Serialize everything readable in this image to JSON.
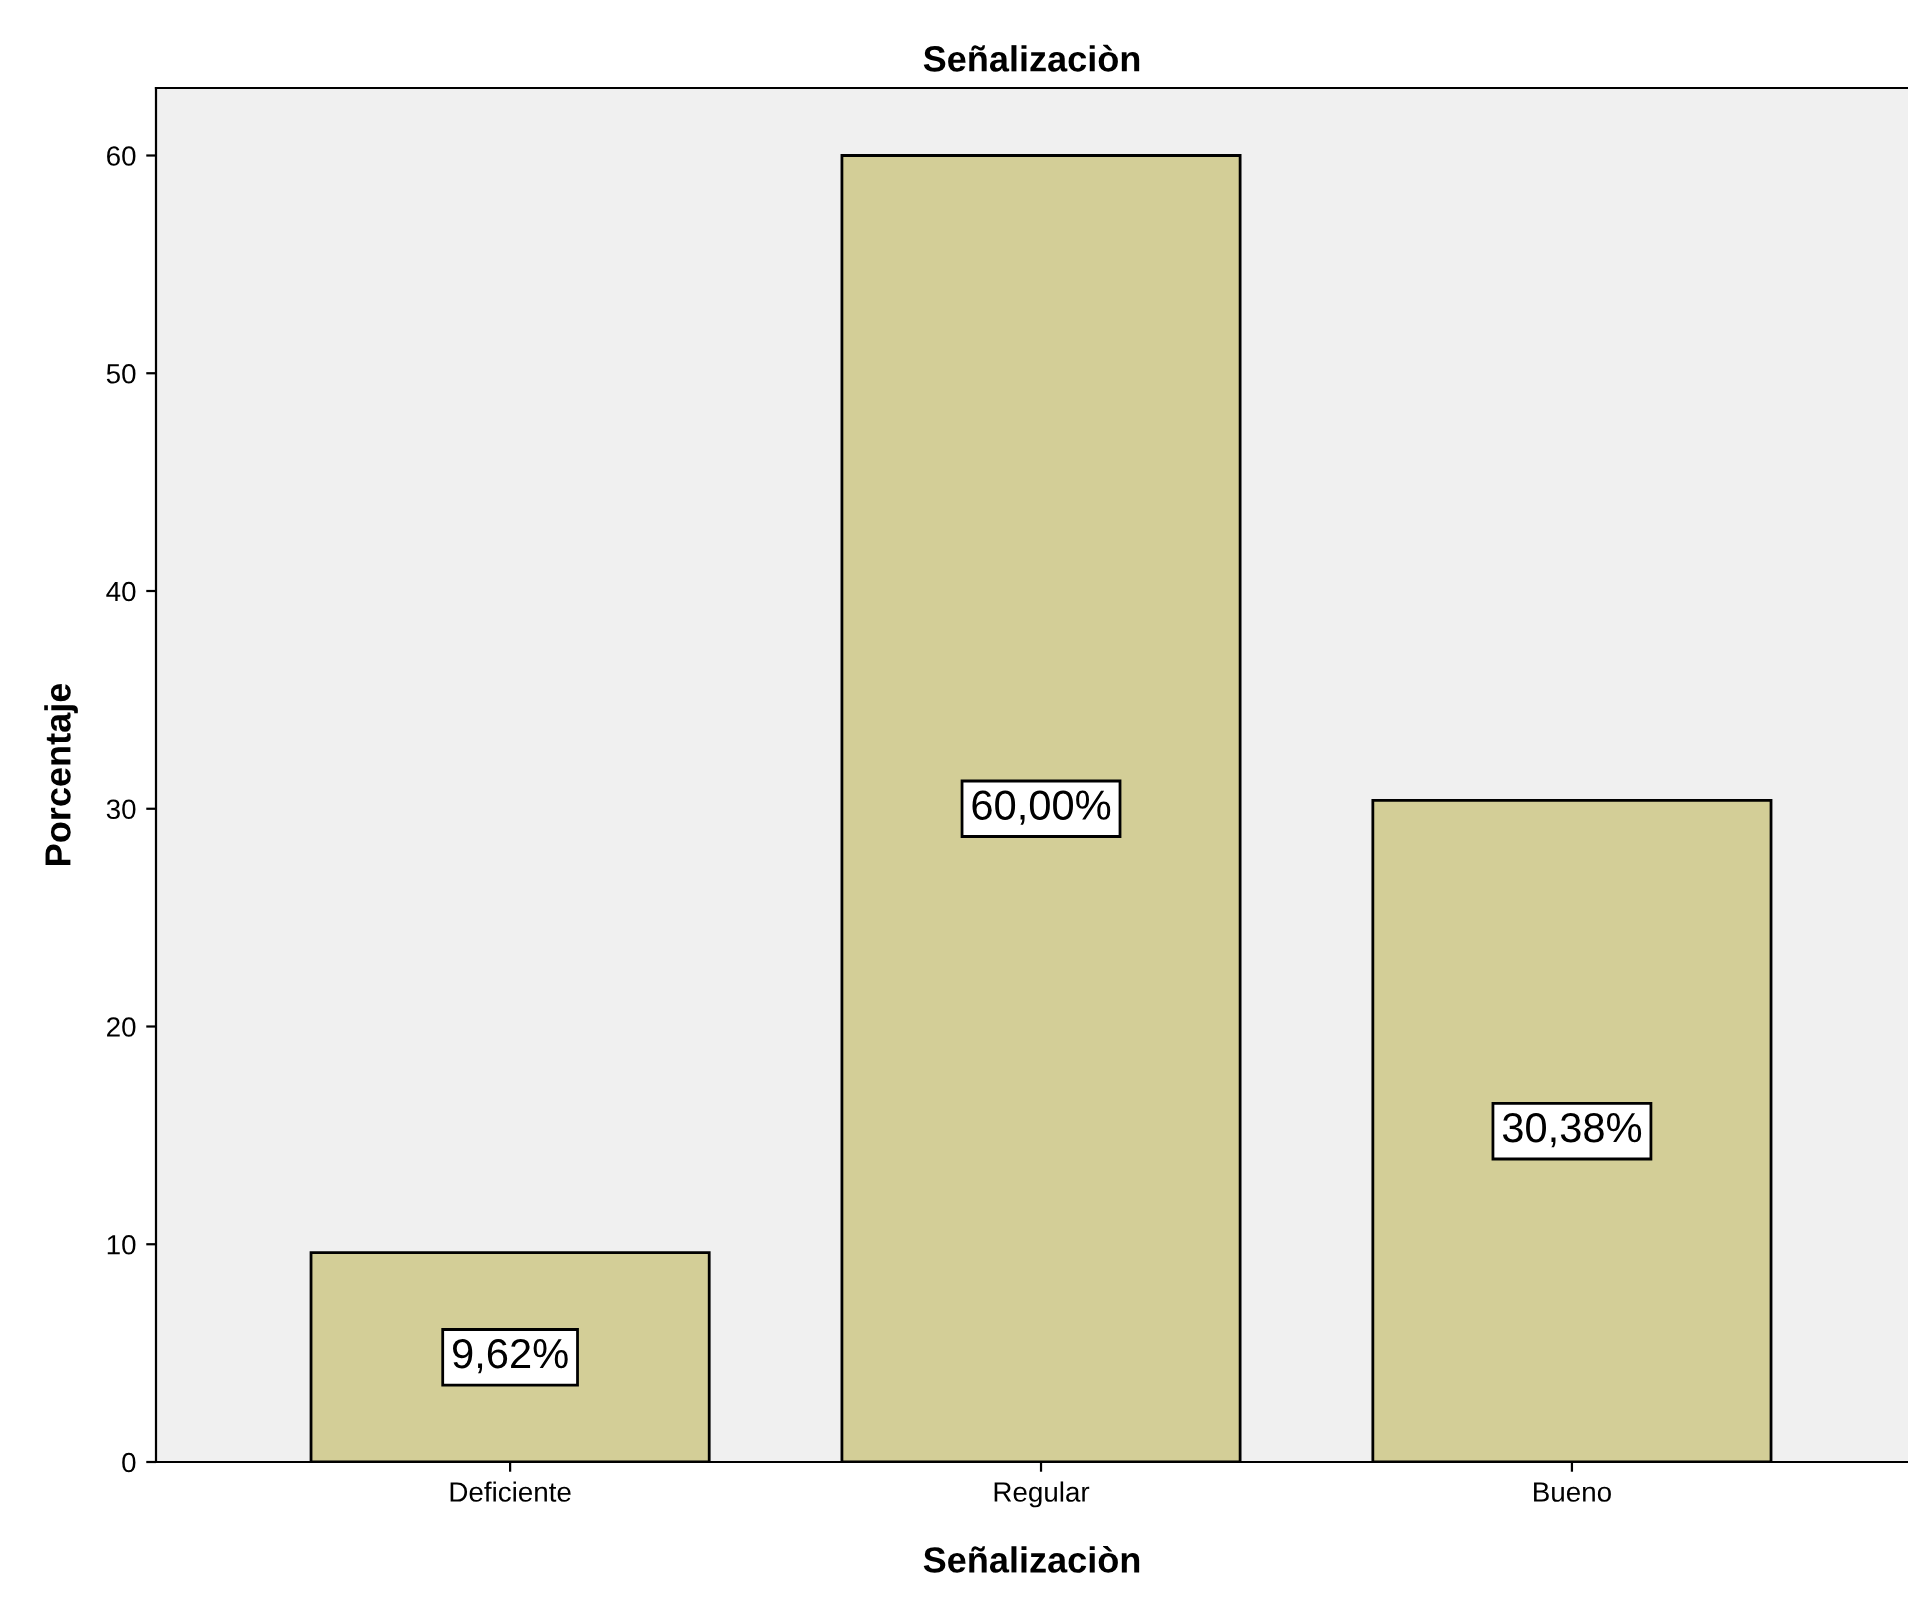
{
  "chart_data": {
    "type": "bar",
    "title": "Señalizaciòn",
    "xlabel": "Señalizaciòn",
    "ylabel": "Porcentaje",
    "categories": [
      "Deficiente",
      "Regular",
      "Bueno"
    ],
    "values": [
      9.62,
      60.0,
      30.38
    ],
    "value_labels": [
      "9,62%",
      "60,00%",
      "30,38%"
    ],
    "color": "#d3ce97",
    "ylim": [
      0,
      63.1
    ],
    "yticks": [
      0,
      10,
      20,
      30,
      40,
      50,
      60
    ],
    "grid": false
  }
}
